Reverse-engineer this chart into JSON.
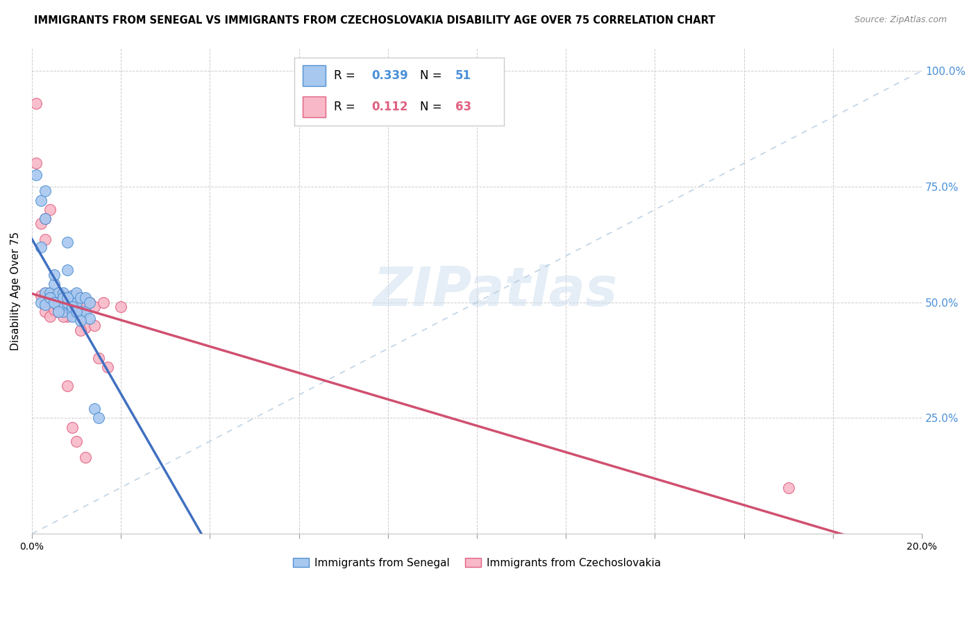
{
  "title": "IMMIGRANTS FROM SENEGAL VS IMMIGRANTS FROM CZECHOSLOVAKIA DISABILITY AGE OVER 75 CORRELATION CHART",
  "source": "Source: ZipAtlas.com",
  "ylabel": "Disability Age Over 75",
  "xlim": [
    0.0,
    0.2
  ],
  "ylim": [
    0.0,
    1.05
  ],
  "r_senegal": 0.339,
  "n_senegal": 51,
  "r_czechoslovakia": 0.112,
  "n_czechoslovakia": 63,
  "color_senegal_fill": "#A8C8F0",
  "color_senegal_edge": "#5090D0",
  "color_czechoslovakia_fill": "#F8B8C8",
  "color_czechoslovakia_edge": "#E06080",
  "color_trend_senegal": "#4070C0",
  "color_trend_czechoslovakia": "#D05070",
  "color_diagonal": "#B0C8E0",
  "watermark": "ZIPatlas",
  "senegal_x": [
    0.001,
    0.002,
    0.002,
    0.003,
    0.003,
    0.003,
    0.004,
    0.004,
    0.004,
    0.005,
    0.005,
    0.005,
    0.005,
    0.006,
    0.006,
    0.006,
    0.006,
    0.007,
    0.007,
    0.007,
    0.007,
    0.007,
    0.008,
    0.008,
    0.008,
    0.008,
    0.009,
    0.009,
    0.009,
    0.009,
    0.01,
    0.01,
    0.01,
    0.011,
    0.011,
    0.012,
    0.012,
    0.013,
    0.013,
    0.014,
    0.015,
    0.002,
    0.003,
    0.004,
    0.005,
    0.006,
    0.007,
    0.008,
    0.009,
    0.01,
    0.011
  ],
  "senegal_y": [
    0.775,
    0.72,
    0.62,
    0.74,
    0.68,
    0.52,
    0.52,
    0.51,
    0.505,
    0.5,
    0.51,
    0.54,
    0.56,
    0.495,
    0.51,
    0.52,
    0.5,
    0.51,
    0.52,
    0.48,
    0.495,
    0.5,
    0.5,
    0.5,
    0.63,
    0.57,
    0.495,
    0.48,
    0.515,
    0.47,
    0.485,
    0.5,
    0.52,
    0.51,
    0.48,
    0.51,
    0.48,
    0.5,
    0.465,
    0.27,
    0.25,
    0.5,
    0.495,
    0.51,
    0.5,
    0.48,
    0.51,
    0.51,
    0.49,
    0.48,
    0.46
  ],
  "czechoslovakia_x": [
    0.001,
    0.001,
    0.002,
    0.002,
    0.003,
    0.003,
    0.003,
    0.004,
    0.004,
    0.004,
    0.004,
    0.005,
    0.005,
    0.005,
    0.005,
    0.006,
    0.006,
    0.006,
    0.006,
    0.006,
    0.007,
    0.007,
    0.007,
    0.008,
    0.008,
    0.008,
    0.008,
    0.009,
    0.009,
    0.009,
    0.01,
    0.01,
    0.01,
    0.01,
    0.011,
    0.011,
    0.012,
    0.012,
    0.013,
    0.013,
    0.014,
    0.014,
    0.015,
    0.016,
    0.017,
    0.003,
    0.004,
    0.005,
    0.006,
    0.007,
    0.008,
    0.009,
    0.01,
    0.011,
    0.012,
    0.006,
    0.007,
    0.008,
    0.009,
    0.01,
    0.011,
    0.17,
    0.02
  ],
  "czechoslovakia_y": [
    0.93,
    0.8,
    0.67,
    0.515,
    0.635,
    0.52,
    0.68,
    0.5,
    0.52,
    0.49,
    0.7,
    0.51,
    0.49,
    0.48,
    0.5,
    0.52,
    0.49,
    0.48,
    0.5,
    0.505,
    0.48,
    0.5,
    0.515,
    0.5,
    0.49,
    0.505,
    0.47,
    0.48,
    0.5,
    0.515,
    0.51,
    0.515,
    0.5,
    0.49,
    0.49,
    0.47,
    0.505,
    0.445,
    0.5,
    0.5,
    0.49,
    0.45,
    0.38,
    0.5,
    0.36,
    0.48,
    0.47,
    0.485,
    0.485,
    0.5,
    0.32,
    0.23,
    0.2,
    0.44,
    0.165,
    0.48,
    0.47,
    0.49,
    0.49,
    0.5,
    0.49,
    0.1,
    0.49
  ]
}
